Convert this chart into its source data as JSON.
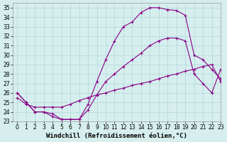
{
  "xlabel": "Windchill (Refroidissement éolien,°C)",
  "bg_color": "#d6eeee",
  "line_color": "#880088",
  "xlim": [
    -0.5,
    23
  ],
  "ylim": [
    23,
    35.5
  ],
  "xticks": [
    0,
    1,
    2,
    3,
    4,
    5,
    6,
    7,
    8,
    9,
    10,
    11,
    12,
    13,
    14,
    15,
    16,
    17,
    18,
    19,
    20,
    21,
    22,
    23
  ],
  "yticks": [
    23,
    24,
    25,
    26,
    27,
    28,
    29,
    30,
    31,
    32,
    33,
    34,
    35
  ],
  "curve1_x": [
    0,
    1,
    2,
    3,
    4,
    5,
    6,
    7,
    8,
    9,
    10,
    11,
    12,
    13,
    14,
    15,
    16,
    17,
    18,
    19,
    20,
    21,
    22,
    23
  ],
  "curve1_y": [
    26.0,
    25.0,
    24.0,
    24.0,
    23.5,
    23.2,
    23.2,
    23.2,
    24.8,
    27.2,
    29.5,
    31.5,
    33.0,
    33.5,
    34.5,
    35.0,
    35.0,
    34.8,
    34.7,
    34.2,
    30.0,
    29.5,
    28.5,
    27.5
  ],
  "curve2_x": [
    0,
    1,
    2,
    3,
    4,
    5,
    6,
    7,
    8,
    9,
    10,
    11,
    12,
    13,
    14,
    15,
    16,
    17,
    18,
    19,
    20,
    21,
    22,
    23
  ],
  "curve2_y": [
    26.0,
    25.0,
    24.0,
    24.0,
    23.8,
    23.2,
    23.2,
    23.2,
    24.2,
    25.8,
    27.2,
    28.0,
    28.8,
    29.5,
    30.2,
    31.0,
    31.5,
    31.8,
    31.8,
    31.5,
    28.0,
    27.0,
    26.0,
    28.5
  ],
  "curve3_x": [
    0,
    1,
    2,
    3,
    4,
    5,
    6,
    7,
    8,
    9,
    10,
    11,
    12,
    13,
    14,
    15,
    16,
    17,
    18,
    19,
    20,
    21,
    22,
    23
  ],
  "curve3_y": [
    25.5,
    24.8,
    24.5,
    24.5,
    24.5,
    24.5,
    24.8,
    25.2,
    25.5,
    25.8,
    26.0,
    26.3,
    26.5,
    26.8,
    27.0,
    27.2,
    27.5,
    27.8,
    28.0,
    28.3,
    28.5,
    28.8,
    29.0,
    27.2
  ],
  "marker": "+",
  "markersize": 3,
  "linewidth": 0.8,
  "grid_color": "#b0d8d8",
  "xlabel_fontsize": 6.5,
  "tick_fontsize": 5.5
}
